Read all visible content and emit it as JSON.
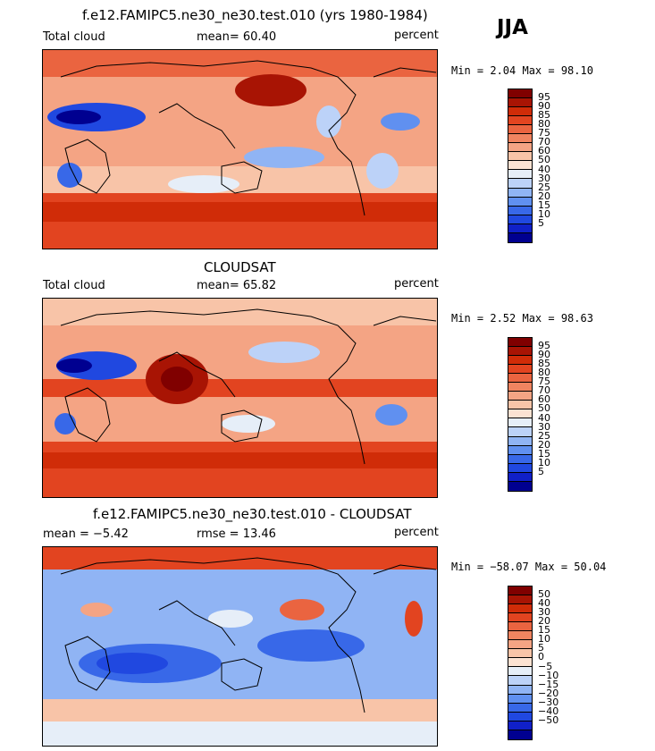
{
  "season": "JJA",
  "palettes": {
    "abs": [
      "#000090",
      "#1020c8",
      "#2048e0",
      "#3868e8",
      "#6090f0",
      "#90b4f4",
      "#bcd2f8",
      "#e6eef8",
      "#fbe2d2",
      "#f8c4a8",
      "#f4a484",
      "#f08460",
      "#ea6440",
      "#e24420",
      "#d02c08",
      "#a81404",
      "#800000"
    ],
    "diff": [
      "#000090",
      "#1020c8",
      "#2048e0",
      "#3868e8",
      "#6090f0",
      "#90b4f4",
      "#bcd2f8",
      "#e6eef8",
      "#fbe2d2",
      "#f8c4a8",
      "#f4a484",
      "#f08460",
      "#ea6440",
      "#e24420",
      "#d02c08",
      "#a81404",
      "#800000"
    ]
  },
  "panels": [
    {
      "title": "f.e12.FAMIPC5.ne30_ne30.test.010 (yrs 1980-1984)",
      "left": "Total cloud",
      "mean": "mean=   60.40",
      "right": "percent",
      "minmax": "Min =    2.04 Max =   98.10",
      "labels": [
        "95",
        "90",
        "85",
        "80",
        "75",
        "70",
        "60",
        "50",
        "40",
        "30",
        "25",
        "20",
        "15",
        "10",
        "5"
      ]
    },
    {
      "title": "CLOUDSAT",
      "left": "Total cloud",
      "mean": "mean=   65.82",
      "right": "percent",
      "minmax": "Min =    2.52 Max =   98.63",
      "labels": [
        "95",
        "90",
        "85",
        "80",
        "75",
        "70",
        "60",
        "50",
        "40",
        "30",
        "25",
        "20",
        "15",
        "10",
        "5"
      ]
    },
    {
      "title": "f.e12.FAMIPC5.ne30_ne30.test.010 - CLOUDSAT",
      "left": "mean =   −5.42",
      "mean": "rmse =   13.46",
      "right": "percent",
      "minmax": "Min = −58.07 Max =   50.04",
      "labels": [
        "50",
        "40",
        "30",
        "20",
        "15",
        "10",
        "5",
        "0",
        "−5",
        "−10",
        "−15",
        "−20",
        "−30",
        "−40",
        "−50"
      ]
    }
  ]
}
